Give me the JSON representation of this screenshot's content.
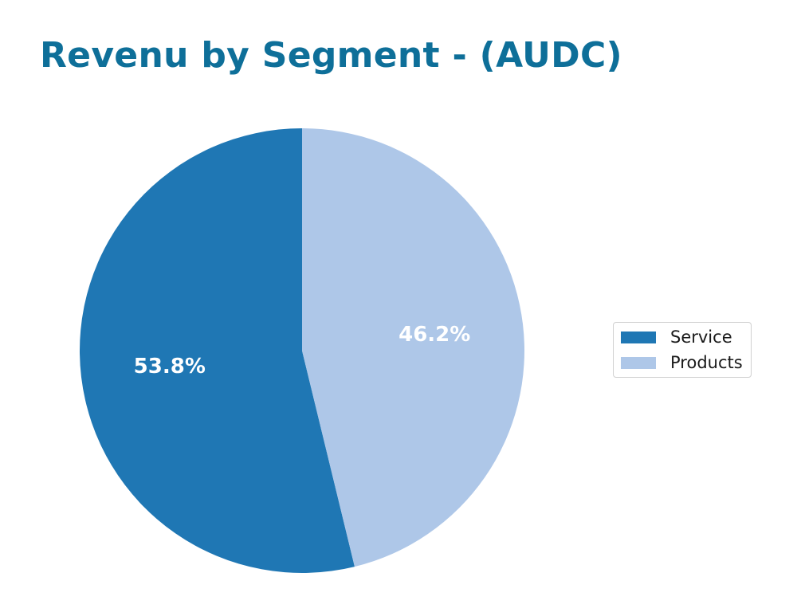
{
  "title": "Revenu by Segment - (AUDC)",
  "chart_data": {
    "type": "pie",
    "title": "Revenu by Segment - (AUDC)",
    "categories": [
      "Service",
      "Products"
    ],
    "values": [
      53.8,
      46.2
    ],
    "labels": [
      "53.8%",
      "46.2%"
    ],
    "colors": [
      "#1f77b4",
      "#aec7e8"
    ],
    "start_angle_deg": 90,
    "direction": "counterclockwise-from-top for Service",
    "legend_position": "right"
  },
  "legend": {
    "items": [
      {
        "label": "Service",
        "color": "#1f77b4"
      },
      {
        "label": "Products",
        "color": "#aec7e8"
      }
    ]
  }
}
